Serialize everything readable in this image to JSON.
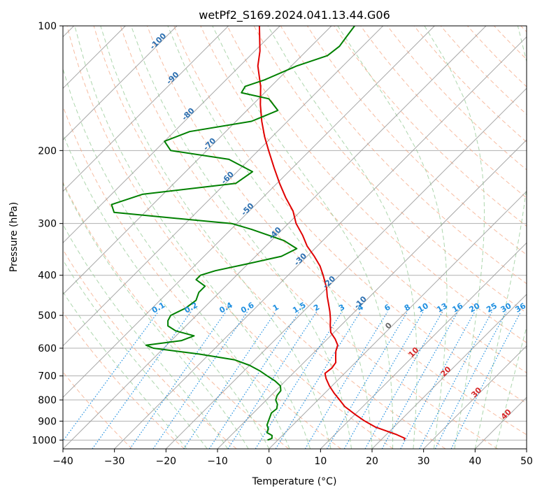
{
  "chart_data": {
    "type": "line",
    "subtype": "skew-t log-p diagram",
    "title": "wetPf2_S169.2024.041.13.44.G06",
    "xlabel": "Temperature (°C)",
    "ylabel": "Pressure (hPa)",
    "xlim": [
      -40,
      50
    ],
    "ylim": [
      1050,
      100
    ],
    "y_scale": "log",
    "x_ticks": [
      "−40",
      "−30",
      "−20",
      "−10",
      "0",
      "10",
      "20",
      "30",
      "40",
      "50"
    ],
    "x_tick_values": [
      -40,
      -30,
      -20,
      -10,
      0,
      10,
      20,
      30,
      40,
      50
    ],
    "y_ticks": [
      "100",
      "200",
      "300",
      "400",
      "500",
      "600",
      "700",
      "800",
      "900",
      "1000"
    ],
    "y_tick_values": [
      100,
      200,
      300,
      400,
      500,
      600,
      700,
      800,
      900,
      1000
    ],
    "grid": true,
    "colors": {
      "temperature": "#e00000",
      "dewpoint": "#008000",
      "isotherm": "#999999",
      "dry_adiabat": "#f4a582",
      "moist_adiabat": "#99cc99",
      "mixing_ratio": "#1f8fe0",
      "isotherm_label": "#2c6fb0",
      "moist_label": "#d62728"
    },
    "isotherm_labels": [
      {
        "t": -100,
        "p": 110,
        "text": "-100"
      },
      {
        "t": -90,
        "p": 135,
        "text": "-90"
      },
      {
        "t": -80,
        "p": 165,
        "text": "-80"
      },
      {
        "t": -70,
        "p": 195,
        "text": "-70"
      },
      {
        "t": -60,
        "p": 235,
        "text": "-60"
      },
      {
        "t": -50,
        "p": 280,
        "text": "-50"
      },
      {
        "t": -40,
        "p": 320,
        "text": "-40"
      },
      {
        "t": -30,
        "p": 370,
        "text": "-30"
      },
      {
        "t": -20,
        "p": 420,
        "text": "-20"
      },
      {
        "t": -10,
        "p": 470,
        "text": "-10"
      },
      {
        "t": 0,
        "p": 535,
        "text": "0"
      }
    ],
    "moist_adiabat_labels": [
      {
        "t": 10,
        "p": 620,
        "text": "10"
      },
      {
        "t": 20,
        "p": 690,
        "text": "20"
      },
      {
        "t": 30,
        "p": 775,
        "text": "30"
      },
      {
        "t": 40,
        "p": 875,
        "text": "40"
      }
    ],
    "mixing_ratio_labels": [
      {
        "w": 0.1,
        "text": "0.1"
      },
      {
        "w": 0.2,
        "text": "0.2"
      },
      {
        "w": 0.4,
        "text": "0.4"
      },
      {
        "w": 0.6,
        "text": "0.6"
      },
      {
        "w": 1,
        "text": "1"
      },
      {
        "w": 1.5,
        "text": "1.5"
      },
      {
        "w": 2,
        "text": "2"
      },
      {
        "w": 3,
        "text": "3"
      },
      {
        "w": 4,
        "text": "4"
      },
      {
        "w": 6,
        "text": "6"
      },
      {
        "w": 8,
        "text": "8"
      },
      {
        "w": 10,
        "text": "10"
      },
      {
        "w": 13,
        "text": "13"
      },
      {
        "w": 16,
        "text": "16"
      },
      {
        "w": 20,
        "text": "20"
      },
      {
        "w": 25,
        "text": "25"
      },
      {
        "w": 30,
        "text": "30"
      },
      {
        "w": 36,
        "text": "36"
      }
    ],
    "series": [
      {
        "key": "temperature",
        "points": [
          [
            1000,
            24.5
          ],
          [
            990,
            24.3
          ],
          [
            970,
            22.0
          ],
          [
            950,
            19.2
          ],
          [
            930,
            16.4
          ],
          [
            900,
            13.2
          ],
          [
            870,
            10.3
          ],
          [
            830,
            6.5
          ],
          [
            800,
            4.2
          ],
          [
            770,
            1.8
          ],
          [
            740,
            -0.5
          ],
          [
            710,
            -2.6
          ],
          [
            690,
            -3.8
          ],
          [
            670,
            -3.5
          ],
          [
            650,
            -3.8
          ],
          [
            630,
            -4.9
          ],
          [
            610,
            -6.0
          ],
          [
            590,
            -6.8
          ],
          [
            570,
            -8.5
          ],
          [
            550,
            -10.6
          ],
          [
            530,
            -12.0
          ],
          [
            510,
            -13.3
          ],
          [
            490,
            -14.8
          ],
          [
            470,
            -16.5
          ],
          [
            450,
            -18.3
          ],
          [
            430,
            -20.0
          ],
          [
            400,
            -23.2
          ],
          [
            380,
            -25.6
          ],
          [
            360,
            -28.6
          ],
          [
            340,
            -32.0
          ],
          [
            320,
            -35.0
          ],
          [
            300,
            -38.5
          ],
          [
            280,
            -41.5
          ],
          [
            260,
            -45.5
          ],
          [
            240,
            -49.5
          ],
          [
            220,
            -53.6
          ],
          [
            200,
            -58.0
          ],
          [
            185,
            -61.5
          ],
          [
            170,
            -65.0
          ],
          [
            155,
            -68.5
          ],
          [
            140,
            -72.0
          ],
          [
            125,
            -76.5
          ],
          [
            115,
            -79.0
          ],
          [
            100,
            -84.0
          ]
        ]
      },
      {
        "key": "dewpoint",
        "points": [
          [
            1000,
            -2.0
          ],
          [
            990,
            -1.5
          ],
          [
            975,
            -2.0
          ],
          [
            960,
            -3.5
          ],
          [
            940,
            -4.0
          ],
          [
            920,
            -5.0
          ],
          [
            900,
            -5.5
          ],
          [
            880,
            -6.0
          ],
          [
            860,
            -6.5
          ],
          [
            840,
            -6.3
          ],
          [
            820,
            -7.0
          ],
          [
            800,
            -8.2
          ],
          [
            780,
            -8.8
          ],
          [
            760,
            -9.0
          ],
          [
            740,
            -10.0
          ],
          [
            720,
            -12.0
          ],
          [
            700,
            -14.5
          ],
          [
            680,
            -17.0
          ],
          [
            660,
            -20.0
          ],
          [
            640,
            -24.0
          ],
          [
            620,
            -32.0
          ],
          [
            600,
            -42.0
          ],
          [
            590,
            -44.0
          ],
          [
            575,
            -38.0
          ],
          [
            560,
            -36.5
          ],
          [
            545,
            -41.0
          ],
          [
            530,
            -43.5
          ],
          [
            515,
            -44.5
          ],
          [
            500,
            -45.0
          ],
          [
            480,
            -43.5
          ],
          [
            460,
            -43.0
          ],
          [
            440,
            -44.0
          ],
          [
            425,
            -44.0
          ],
          [
            410,
            -47.0
          ],
          [
            400,
            -47.0
          ],
          [
            390,
            -45.0
          ],
          [
            375,
            -40.0
          ],
          [
            360,
            -35.0
          ],
          [
            345,
            -33.5
          ],
          [
            330,
            -37.5
          ],
          [
            310,
            -46.0
          ],
          [
            300,
            -51.0
          ],
          [
            290,
            -65.0
          ],
          [
            282,
            -76.0
          ],
          [
            270,
            -78.0
          ],
          [
            255,
            -74.0
          ],
          [
            240,
            -58.0
          ],
          [
            225,
            -57.0
          ],
          [
            210,
            -64.0
          ],
          [
            200,
            -77.0
          ],
          [
            190,
            -80.0
          ],
          [
            180,
            -77.0
          ],
          [
            170,
            -67.0
          ],
          [
            160,
            -64.0
          ],
          [
            150,
            -68.0
          ],
          [
            145,
            -74.5
          ],
          [
            140,
            -75.0
          ],
          [
            135,
            -72.5
          ],
          [
            125,
            -69.0
          ],
          [
            118,
            -65.0
          ],
          [
            112,
            -64.5
          ],
          [
            106,
            -65.0
          ],
          [
            100,
            -65.5
          ]
        ]
      }
    ]
  }
}
